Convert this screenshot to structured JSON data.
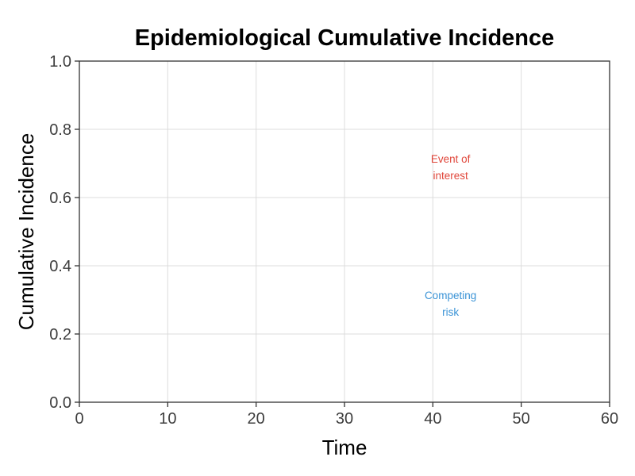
{
  "chart_data": {
    "type": "line",
    "title": "Epidemiological Cumulative Incidence",
    "xlabel": "Time",
    "ylabel": "Cumulative Incidence",
    "xlim": [
      0,
      60
    ],
    "ylim": [
      0,
      1
    ],
    "x_ticks": [
      0,
      10,
      20,
      30,
      40,
      50,
      60
    ],
    "y_ticks": [
      0.0,
      0.2,
      0.4,
      0.6,
      0.8,
      1.0
    ],
    "y_tick_labels": [
      "0.0",
      "0.2",
      "0.4",
      "0.6",
      "0.8",
      "1.0"
    ],
    "grid": true,
    "series": [],
    "annotations": [
      {
        "lines": [
          "Event of",
          "interest"
        ],
        "x": 42,
        "y": 0.69,
        "color": "#e0463a"
      },
      {
        "lines": [
          "Competing",
          "risk"
        ],
        "x": 42,
        "y": 0.29,
        "color": "#3a93d6"
      }
    ]
  }
}
